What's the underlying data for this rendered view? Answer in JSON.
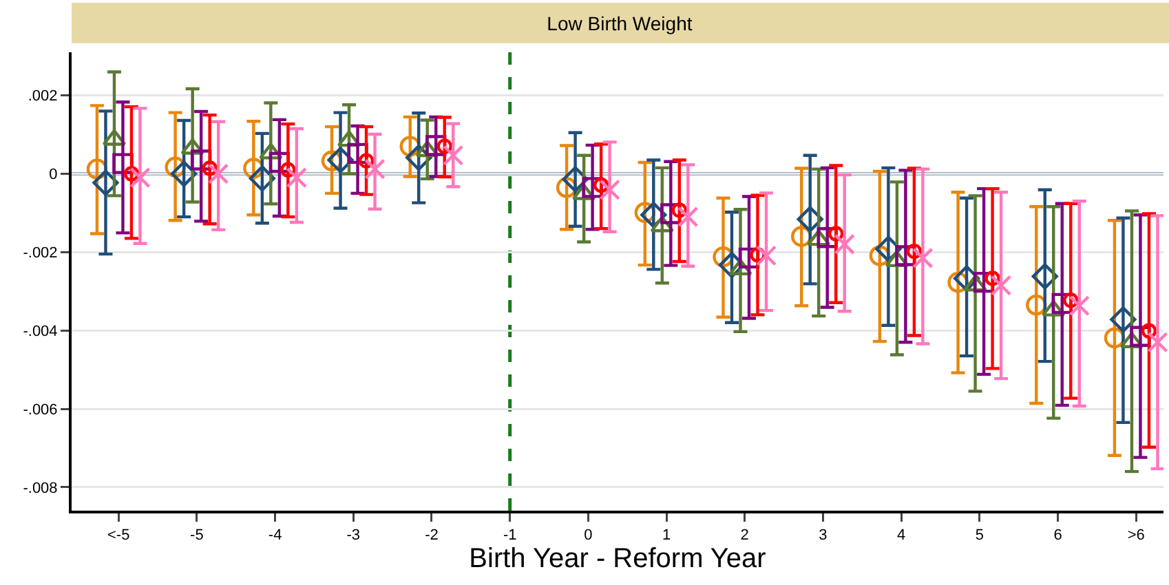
{
  "chart_data": {
    "type": "scatter",
    "title": "Low Birth Weight",
    "xlabel": "Birth Year - Reform Year",
    "categories": [
      "<-5",
      "-5",
      "-4",
      "-3",
      "-2",
      "-1",
      "0",
      "1",
      "2",
      "3",
      "4",
      "5",
      "6",
      ">6"
    ],
    "series": [
      {
        "color": "#e8870e",
        "marker": "circle",
        "values": [
          0.00012,
          0.00017,
          0.00014,
          0.00033,
          0.0007,
          null,
          -0.00035,
          -0.00099,
          -0.00212,
          -0.0016,
          -0.00209,
          -0.00277,
          -0.00335,
          -0.00419
        ],
        "errors": [
          [
            -0.00153,
            0.00174
          ],
          [
            -0.00119,
            0.00156
          ],
          [
            -0.00105,
            0.00134
          ],
          [
            -0.0005,
            0.0012
          ],
          [
            -7e-05,
            0.00145
          ],
          null,
          [
            -0.00142,
            0.00072
          ],
          [
            -0.00233,
            0.00029
          ],
          [
            -0.00366,
            -0.00062
          ],
          [
            -0.00337,
            0.00014
          ],
          [
            -0.00428,
            6e-05
          ],
          [
            -0.00508,
            -0.00047
          ],
          [
            -0.00586,
            -0.00084
          ],
          [
            -0.00719,
            -0.00119
          ]
        ]
      },
      {
        "color": "#1f4e79",
        "marker": "diamond",
        "values": [
          -0.00023,
          0,
          -0.00012,
          0.00035,
          0.00041,
          null,
          -0.00014,
          -0.00105,
          -0.00233,
          -0.00116,
          -0.00192,
          -0.00267,
          -0.00262,
          -0.00372
        ],
        "errors": [
          [
            -0.00205,
            0.0016
          ],
          [
            -0.0011,
            0.00136
          ],
          [
            -0.00126,
            0.00103
          ],
          [
            -0.00088,
            0.00156
          ],
          [
            -0.00074,
            0.00155
          ],
          null,
          [
            -0.00134,
            0.00105
          ],
          [
            -0.00244,
            0.00035
          ],
          [
            -0.0038,
            -0.00098
          ],
          [
            -0.00281,
            0.00047
          ],
          [
            -0.00387,
            0.00015
          ],
          [
            -0.00465,
            -0.00062
          ],
          [
            -0.00479,
            -0.00041
          ],
          [
            -0.00635,
            -0.00113
          ]
        ]
      },
      {
        "color": "#5a7a32",
        "marker": "triangle",
        "values": [
          0.00087,
          0.00064,
          0.00052,
          0.00084,
          0.00058,
          null,
          -0.00052,
          -0.00134,
          -0.00244,
          -0.00169,
          -0.00223,
          -0.00285,
          -0.00349,
          -0.0043
        ],
        "errors": [
          [
            -0.00056,
            0.0026
          ],
          [
            -0.00072,
            0.00217
          ],
          [
            -0.00077,
            0.00181
          ],
          [
            0,
            0.00176
          ],
          [
            -0.00013,
            0.00137
          ],
          null,
          [
            -0.00174,
            0.00047
          ],
          [
            -0.00279,
            0.00015
          ],
          [
            -0.00403,
            -0.00091
          ],
          [
            -0.00363,
            0.00012
          ],
          [
            -0.00462,
            -0.00021
          ],
          [
            -0.00555,
            -0.00056
          ],
          [
            -0.00624,
            -0.00084
          ],
          [
            -0.0076,
            -0.00095
          ]
        ]
      },
      {
        "color": "#800080",
        "marker": "square",
        "values": [
          0.00026,
          0.00035,
          0.00029,
          0.00052,
          0.00072,
          null,
          -0.00035,
          -0.00102,
          -0.00215,
          -0.00163,
          -0.00209,
          -0.00277,
          -0.00331,
          -0.00415
        ],
        "errors": [
          [
            -0.00151,
            0.00183
          ],
          [
            -0.00121,
            0.00159
          ],
          [
            -0.00108,
            0.00138
          ],
          [
            -0.0005,
            0.00122
          ],
          [
            -7e-05,
            0.00145
          ],
          null,
          [
            -0.00142,
            0.00073
          ],
          [
            -0.00234,
            0.00031
          ],
          [
            -0.00369,
            -0.00058
          ],
          [
            -0.00341,
            0.00015
          ],
          [
            -0.0043,
            9e-05
          ],
          [
            -0.00512,
            -0.00038
          ],
          [
            -0.00591,
            -0.00076
          ],
          [
            -0.00724,
            -0.00105
          ]
        ]
      },
      {
        "color": "#ff0000",
        "marker": "circle",
        "values": [
          0,
          0.00014,
          0.0001,
          0.00033,
          0.0007,
          null,
          -0.00029,
          -0.00093,
          -0.00207,
          -0.00153,
          -0.00198,
          -0.00267,
          -0.00323,
          -0.00401
        ],
        "errors": [
          [
            -0.00165,
            0.00171
          ],
          [
            -0.00128,
            0.0015
          ],
          [
            -0.0011,
            0.00127
          ],
          [
            -0.00053,
            0.0012
          ],
          [
            -8e-05,
            0.00144
          ],
          null,
          [
            -0.0014,
            0.00076
          ],
          [
            -0.00224,
            0.00035
          ],
          [
            -0.0036,
            -0.00055
          ],
          [
            -0.00329,
            0.00021
          ],
          [
            -0.00413,
            0.00014
          ],
          [
            -0.00497,
            -0.00038
          ],
          [
            -0.00573,
            -0.00076
          ],
          [
            -0.00698,
            -0.00102
          ]
        ]
      },
      {
        "color": "#ff77bb",
        "marker": "cross",
        "values": [
          -0.0001,
          0,
          -0.0001,
          0.00012,
          0.00047,
          null,
          -0.00041,
          -0.0011,
          -0.00209,
          -0.0018,
          -0.00215,
          -0.00285,
          -0.00337,
          -0.0043
        ],
        "errors": [
          [
            -0.00178,
            0.00167
          ],
          [
            -0.00143,
            0.00133
          ],
          [
            -0.00124,
            0.00115
          ],
          [
            -0.0009,
            0.00101
          ],
          [
            -0.00033,
            0.00128
          ],
          null,
          [
            -0.00148,
            0.00081
          ],
          [
            -0.00236,
            0.00023
          ],
          [
            -0.00349,
            -0.00049
          ],
          [
            -0.00351,
            -3e-05
          ],
          [
            -0.00434,
            0.00012
          ],
          [
            -0.00523,
            -0.00047
          ],
          [
            -0.00593,
            -0.0007
          ],
          [
            -0.00753,
            -0.00107
          ]
        ]
      }
    ],
    "ylim": [
      -0.0086,
      0.0031
    ],
    "yticks": [
      {
        "value": 0.002,
        "label": ".002"
      },
      0,
      {
        "value": -0.002,
        "label": "-.002"
      },
      {
        "value": -0.004,
        "label": "-.004"
      },
      {
        "value": -0.006,
        "label": "-.006"
      },
      {
        "value": -0.008,
        "label": "-.008"
      }
    ],
    "ref_lines": [
      {
        "axis": "y",
        "value": 0,
        "color": "#1f4e79",
        "line_style": "solid"
      },
      {
        "axis": "x",
        "value": "-1",
        "color": "#1a7a1a",
        "line_style": "dashed"
      }
    ],
    "grid": "y"
  }
}
